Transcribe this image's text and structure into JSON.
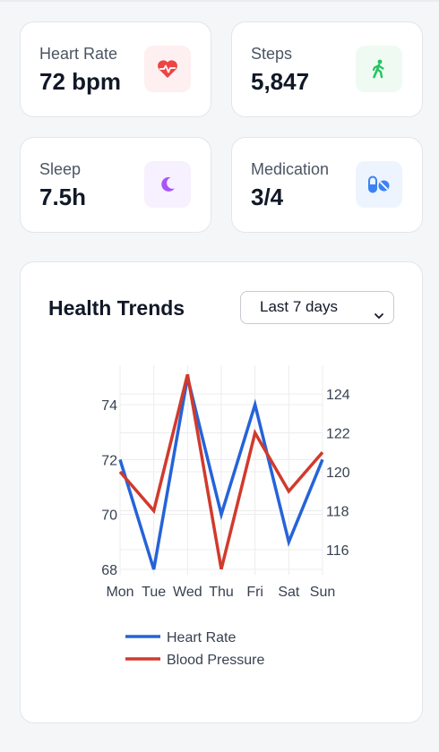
{
  "stats": [
    {
      "label": "Heart Rate",
      "value": "72 bpm",
      "icon": "heart-pulse-icon",
      "icon_color": "#ef4444",
      "icon_bg": "#fef0f0"
    },
    {
      "label": "Steps",
      "value": "5,847",
      "icon": "walking-icon",
      "icon_color": "#22c55e",
      "icon_bg": "#effbf2"
    },
    {
      "label": "Sleep",
      "value": "7.5h",
      "icon": "moon-icon",
      "icon_color": "#a855f7",
      "icon_bg": "#f7f0fe"
    },
    {
      "label": "Medication",
      "value": "3/4",
      "icon": "pills-icon",
      "icon_color": "#3b82f6",
      "icon_bg": "#eef4fe"
    }
  ],
  "trends": {
    "title": "Health Trends",
    "range_selected": "Last 7 days"
  },
  "chart_data": {
    "type": "line",
    "categories": [
      "Mon",
      "Tue",
      "Wed",
      "Thu",
      "Fri",
      "Sat",
      "Sun"
    ],
    "series": [
      {
        "name": "Heart Rate",
        "axis": "left",
        "color": "#2563d9",
        "values": [
          72,
          68,
          75,
          70,
          74,
          69,
          72
        ]
      },
      {
        "name": "Blood Pressure",
        "axis": "right",
        "color": "#d13a2c",
        "values": [
          120,
          118,
          125,
          115,
          122,
          119,
          121
        ]
      }
    ],
    "y_left": {
      "ticks": [
        68,
        70,
        72,
        74
      ],
      "range": [
        68,
        75
      ]
    },
    "y_right": {
      "ticks": [
        116,
        118,
        120,
        122,
        124
      ],
      "range": [
        115,
        125
      ]
    },
    "grid": true,
    "legend_position": "bottom-left"
  }
}
